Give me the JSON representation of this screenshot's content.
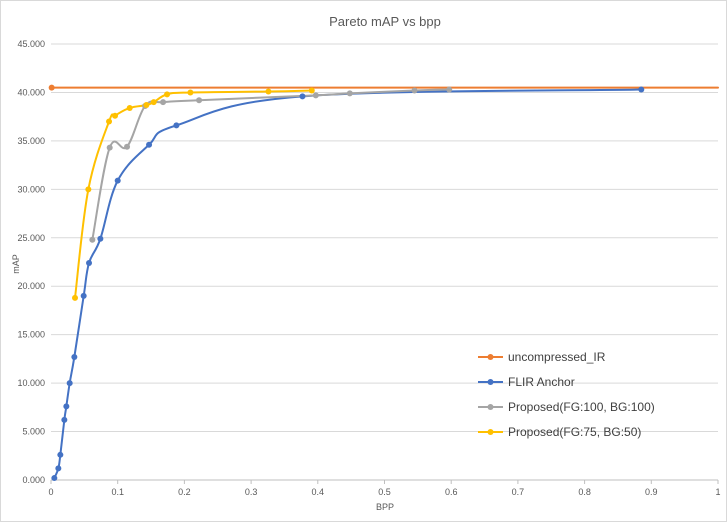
{
  "chart_data": {
    "type": "line",
    "title": "Pareto mAP vs bpp",
    "xlabel": "BPP",
    "ylabel": "mAP",
    "xlim": [
      0,
      1
    ],
    "ylim": [
      0,
      45
    ],
    "xticks": [
      "0",
      "0.1",
      "0.2",
      "0.3",
      "0.4",
      "0.5",
      "0.6",
      "0.7",
      "0.8",
      "0.9",
      "1"
    ],
    "xtick_values": [
      0,
      0.1,
      0.2,
      0.3,
      0.4,
      0.5,
      0.6,
      0.7,
      0.8,
      0.9,
      1
    ],
    "yticks": [
      "0.000",
      "5.000",
      "10.000",
      "15.000",
      "20.000",
      "25.000",
      "30.000",
      "35.000",
      "40.000",
      "45.000"
    ],
    "ytick_values": [
      0,
      5,
      10,
      15,
      20,
      25,
      30,
      35,
      40,
      45
    ],
    "grid": "horizontal",
    "legend_position": "bottom-right",
    "series": [
      {
        "name": "uncompressed_IR",
        "color": "#ED7D31",
        "x": [
          0.001,
          1.0
        ],
        "y": [
          40.5,
          40.5
        ],
        "markers": [
          0
        ]
      },
      {
        "name": "FLIR Anchor",
        "color": "#4472C4",
        "x": [
          0.005,
          0.011,
          0.014,
          0.02,
          0.023,
          0.028,
          0.035,
          0.049,
          0.057,
          0.074,
          0.1,
          0.147,
          0.188,
          0.377,
          0.885
        ],
        "y": [
          0.2,
          1.2,
          2.6,
          6.2,
          7.6,
          10.0,
          12.7,
          19.0,
          22.4,
          24.9,
          30.9,
          34.6,
          36.6,
          39.6,
          40.3
        ]
      },
      {
        "name": "Proposed(FG:100, BG:100)",
        "color": "#A5A5A5",
        "x": [
          0.062,
          0.088,
          0.114,
          0.141,
          0.168,
          0.222,
          0.397,
          0.448,
          0.545,
          0.597
        ],
        "y": [
          24.8,
          34.3,
          34.4,
          38.6,
          39.0,
          39.2,
          39.7,
          39.9,
          40.2,
          40.3
        ]
      },
      {
        "name": "Proposed(FG:75, BG:50)",
        "color": "#FFC000",
        "x": [
          0.036,
          0.056,
          0.087,
          0.096,
          0.118,
          0.143,
          0.154,
          0.174,
          0.209,
          0.326,
          0.391
        ],
        "y": [
          18.8,
          30.0,
          37.0,
          37.6,
          38.4,
          38.7,
          39.0,
          39.8,
          40.0,
          40.1,
          40.2
        ]
      }
    ]
  }
}
